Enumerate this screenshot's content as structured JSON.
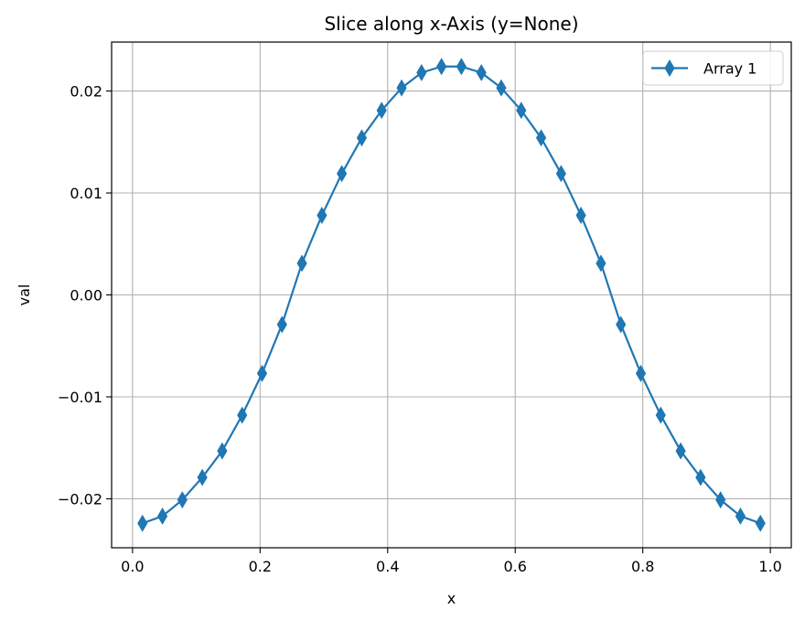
{
  "chart_data": {
    "type": "line",
    "title": "Slice along x-Axis (y=None)",
    "xlabel": "x",
    "ylabel": "val",
    "xlim": [
      -0.0328,
      1.0328
    ],
    "ylim": [
      -0.0248,
      0.0248
    ],
    "xticks": [
      0.0,
      0.2,
      0.4,
      0.6,
      0.8,
      1.0
    ],
    "xtick_labels": [
      "0.0",
      "0.2",
      "0.4",
      "0.6",
      "0.8",
      "1.0"
    ],
    "yticks": [
      -0.02,
      -0.01,
      0.0,
      0.01,
      0.02
    ],
    "ytick_labels": [
      "−0.02",
      "−0.01",
      "0.00",
      "0.01",
      "0.02"
    ],
    "grid": true,
    "legend_position": "top-right",
    "series": [
      {
        "name": "Array 1",
        "color": "#1f77b4",
        "marker": "thin-diamond",
        "x": [
          0.0156,
          0.0469,
          0.0781,
          0.1094,
          0.1406,
          0.1719,
          0.2031,
          0.2344,
          0.2656,
          0.2969,
          0.3281,
          0.3594,
          0.3906,
          0.4219,
          0.4531,
          0.4844,
          0.5156,
          0.5469,
          0.5781,
          0.6094,
          0.6406,
          0.6719,
          0.7031,
          0.7344,
          0.7656,
          0.7969,
          0.8281,
          0.8594,
          0.8906,
          0.9219,
          0.9531,
          0.9844
        ],
        "values": [
          -0.0224,
          -0.0217,
          -0.0201,
          -0.0179,
          -0.0153,
          -0.0118,
          -0.0077,
          -0.0029,
          0.0031,
          0.0078,
          0.0119,
          0.0154,
          0.0181,
          0.0203,
          0.0218,
          0.0224,
          0.0224,
          0.0218,
          0.0203,
          0.0181,
          0.0154,
          0.0119,
          0.0078,
          0.0031,
          -0.0029,
          -0.0077,
          -0.0118,
          -0.0153,
          -0.0179,
          -0.0201,
          -0.0217,
          -0.0224
        ]
      }
    ]
  }
}
